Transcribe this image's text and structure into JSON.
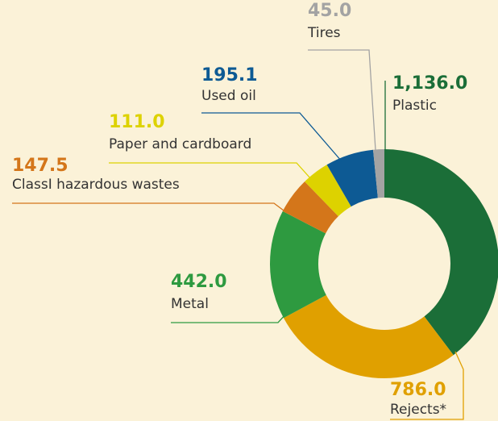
{
  "chart_data": {
    "type": "pie",
    "categories": [
      "Plastic",
      "Rejects*",
      "Metal",
      "ClassI hazardous wastes",
      "Paper and cardboard",
      "Used oil",
      "Tires"
    ],
    "values": [
      1136.0,
      786.0,
      442.0,
      147.5,
      111.0,
      195.1,
      45.0
    ],
    "value_labels": [
      "1,136.0",
      "786.0",
      "442.0",
      "147.5",
      "111.0",
      "195.1",
      "45.0"
    ],
    "colors": [
      "#1b6e38",
      "#e0a000",
      "#2e9a40",
      "#d4761a",
      "#ddd200",
      "#0d5a94",
      "#a3a3a3"
    ],
    "donut": true
  }
}
